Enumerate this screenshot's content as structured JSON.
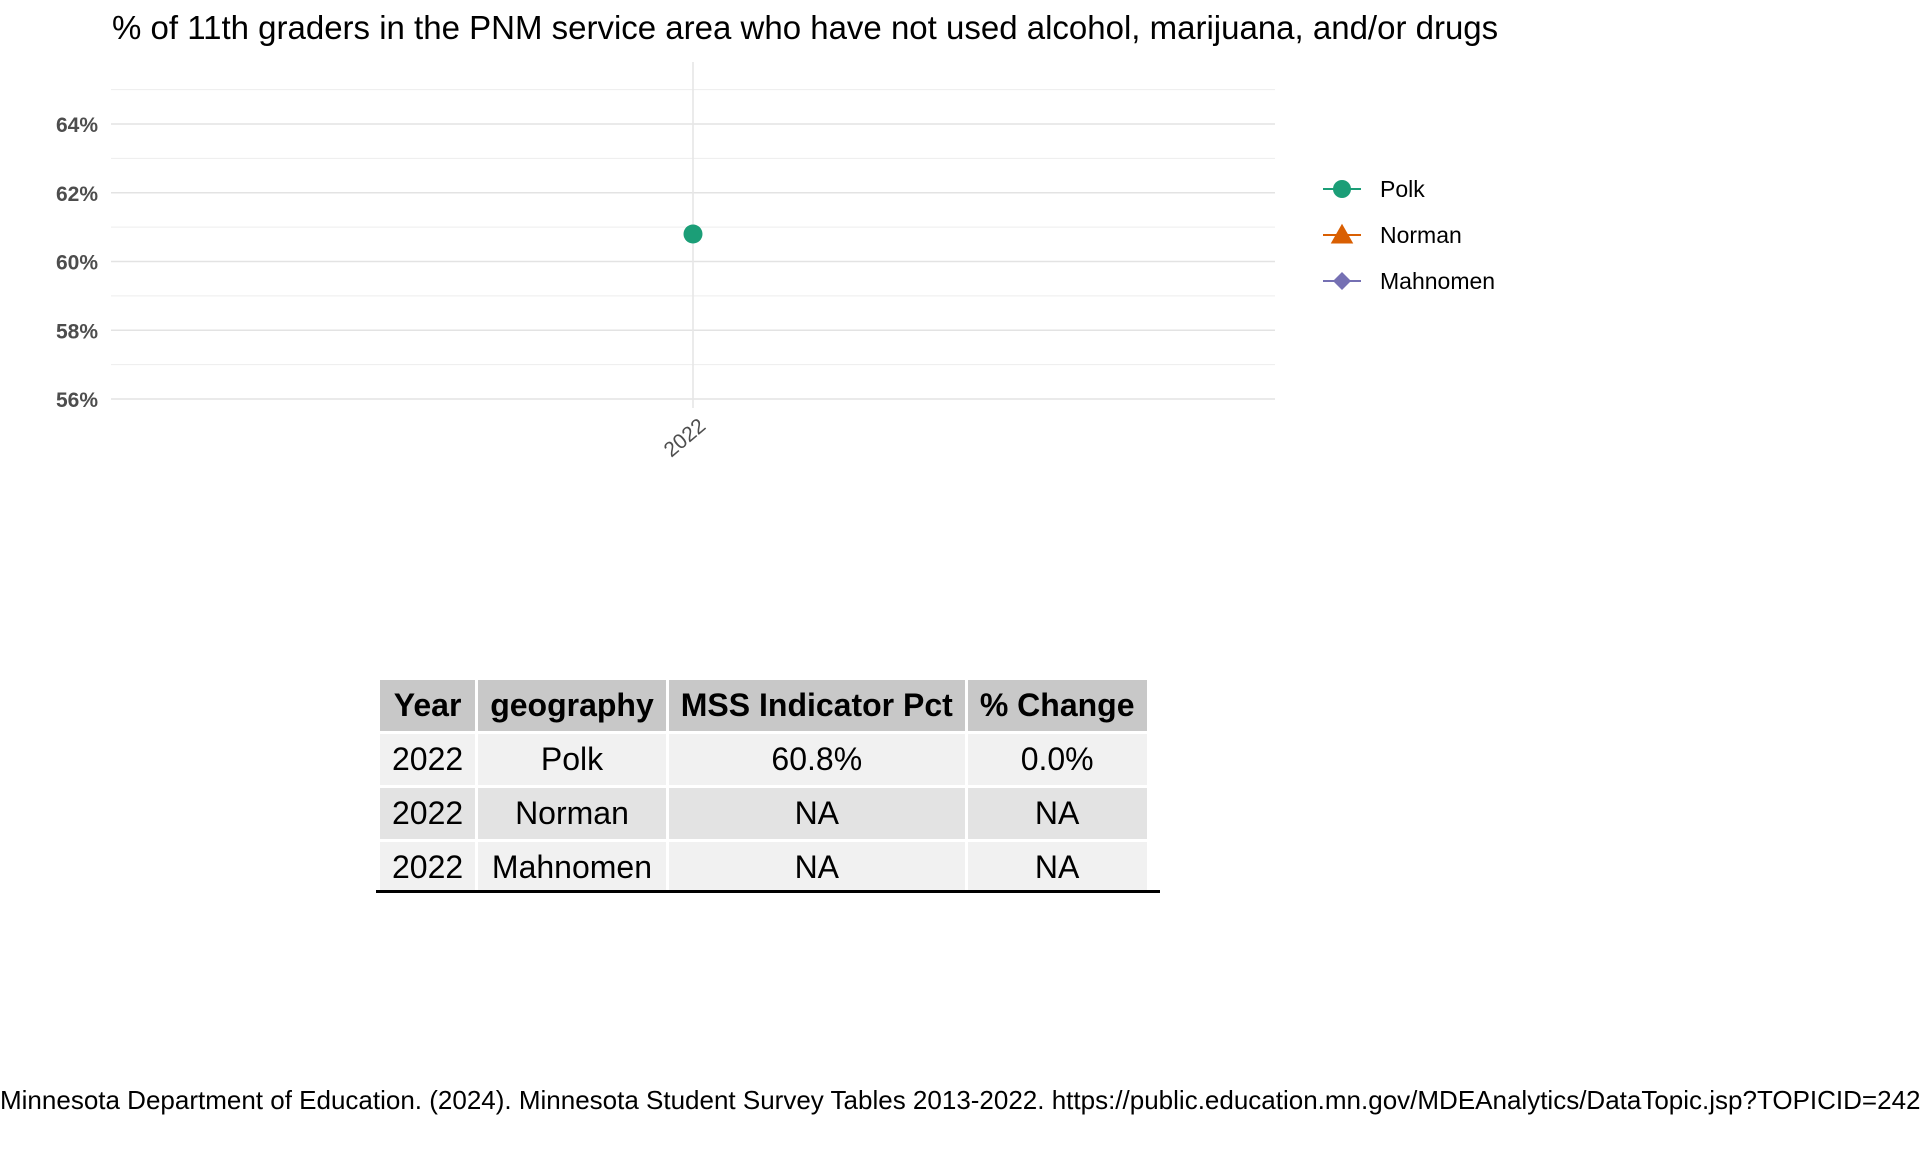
{
  "chart_data": {
    "type": "scatter",
    "title": "% of 11th graders in the PNM service area who have not used alcohol, marijuana, and/or drugs",
    "xlabel": "",
    "ylabel": "",
    "x": [
      "2022"
    ],
    "y_ticks": [
      "56%",
      "58%",
      "60%",
      "62%",
      "64%"
    ],
    "ylim": [
      55,
      65.5
    ],
    "grid": true,
    "legend_position": "right",
    "series": [
      {
        "name": "Polk",
        "marker": "circle",
        "color": "#1b9e77",
        "values": [
          60.8
        ]
      },
      {
        "name": "Norman",
        "marker": "triangle",
        "color": "#d95f02",
        "values": [
          null
        ]
      },
      {
        "name": "Mahnomen",
        "marker": "diamond",
        "color": "#7570b3",
        "values": [
          null
        ]
      }
    ]
  },
  "table": {
    "headers": [
      "Year",
      "geography",
      "MSS Indicator Pct",
      "% Change"
    ],
    "rows": [
      [
        "2022",
        "Polk",
        "60.8%",
        "0.0%"
      ],
      [
        "2022",
        "Norman",
        "NA",
        "NA"
      ],
      [
        "2022",
        "Mahnomen",
        "NA",
        "NA"
      ]
    ]
  },
  "source": "Minnesota Department of Education. (2024). Minnesota Student Survey Tables 2013-2022. https://public.education.mn.gov/MDEAnalytics/DataTopic.jsp?TOPICID=242"
}
